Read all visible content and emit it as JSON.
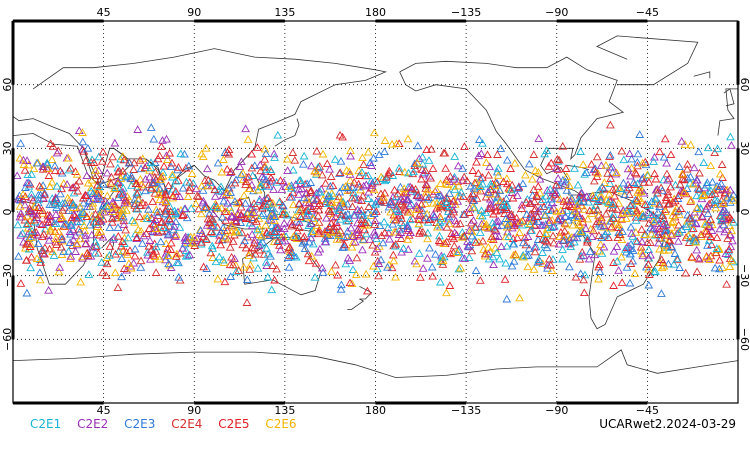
{
  "map": {
    "projection": "cylindrical equidistant",
    "center_longitude": 180,
    "lon_range": [
      0,
      360
    ],
    "lat_range": [
      -90,
      90
    ],
    "gridlines": "dotted",
    "marker_shape": "open triangle",
    "top_lon_ticks": [
      "45",
      "90",
      "135",
      "180",
      "−135",
      "−90",
      "−45"
    ],
    "bottom_lon_ticks": [
      "45",
      "90",
      "135",
      "180",
      "−135",
      "−90",
      "−45"
    ],
    "lat_ticks": [
      "60",
      "30",
      "0",
      "−30",
      "−60"
    ]
  },
  "legend": [
    {
      "label": "C2E1",
      "color": "#19b4d6"
    },
    {
      "label": "C2E2",
      "color": "#9b2fb8"
    },
    {
      "label": "C2E3",
      "color": "#2f7ad9"
    },
    {
      "label": "C2E4",
      "color": "#d42f2f"
    },
    {
      "label": "C2E5",
      "color": "#e0202a"
    },
    {
      "label": "C2E6",
      "color": "#f5b400"
    }
  ],
  "caption": "UCARwet2.2024-03-29",
  "observation_lat_band": [
    -45,
    45
  ]
}
